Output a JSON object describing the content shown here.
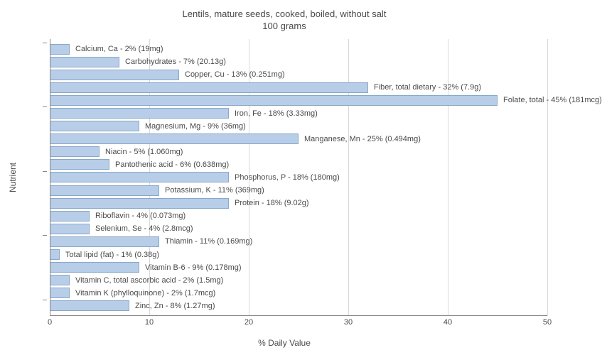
{
  "title_line1": "Lentils, mature seeds, cooked, boiled, without salt",
  "title_line2": "100 grams",
  "y_axis_label": "Nutrient",
  "x_axis_label": "% Daily Value",
  "bar_color": "#b7cde8",
  "bar_border_color": "#8aa8c8",
  "grid_color": "#d9d9d9",
  "background_color": "#ffffff",
  "text_color": "#4a4a4a",
  "title_fontsize": 13,
  "label_fontsize": 11,
  "axis_label_fontsize": 12,
  "xlim": [
    0,
    50
  ],
  "x_ticks": [
    0,
    10,
    20,
    30,
    40,
    50
  ],
  "y_group_ticks": [
    0,
    5,
    10,
    15,
    20
  ],
  "nutrients": [
    {
      "label": "Calcium, Ca - 2% (19mg)",
      "value": 2
    },
    {
      "label": "Carbohydrates - 7% (20.13g)",
      "value": 7
    },
    {
      "label": "Copper, Cu - 13% (0.251mg)",
      "value": 13
    },
    {
      "label": "Fiber, total dietary - 32% (7.9g)",
      "value": 32
    },
    {
      "label": "Folate, total - 45% (181mcg)",
      "value": 45
    },
    {
      "label": "Iron, Fe - 18% (3.33mg)",
      "value": 18
    },
    {
      "label": "Magnesium, Mg - 9% (36mg)",
      "value": 9
    },
    {
      "label": "Manganese, Mn - 25% (0.494mg)",
      "value": 25
    },
    {
      "label": "Niacin - 5% (1.060mg)",
      "value": 5
    },
    {
      "label": "Pantothenic acid - 6% (0.638mg)",
      "value": 6
    },
    {
      "label": "Phosphorus, P - 18% (180mg)",
      "value": 18
    },
    {
      "label": "Potassium, K - 11% (369mg)",
      "value": 11
    },
    {
      "label": "Protein - 18% (9.02g)",
      "value": 18
    },
    {
      "label": "Riboflavin - 4% (0.073mg)",
      "value": 4
    },
    {
      "label": "Selenium, Se - 4% (2.8mcg)",
      "value": 4
    },
    {
      "label": "Thiamin - 11% (0.169mg)",
      "value": 11
    },
    {
      "label": "Total lipid (fat) - 1% (0.38g)",
      "value": 1
    },
    {
      "label": "Vitamin B-6 - 9% (0.178mg)",
      "value": 9
    },
    {
      "label": "Vitamin C, total ascorbic acid - 2% (1.5mg)",
      "value": 2
    },
    {
      "label": "Vitamin K (phylloquinone) - 2% (1.7mcg)",
      "value": 2
    },
    {
      "label": "Zinc, Zn - 8% (1.27mg)",
      "value": 8
    }
  ]
}
